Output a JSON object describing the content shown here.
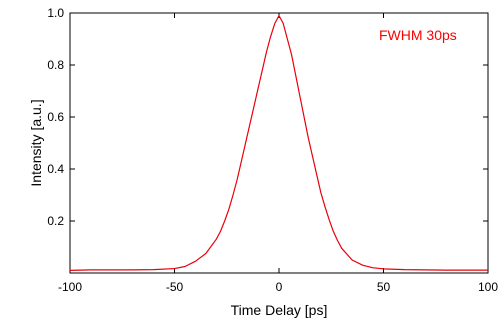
{
  "chart_data": {
    "type": "line",
    "title": "",
    "xlabel": "Time Delay [ps]",
    "ylabel": "Intensity [a.u.]",
    "xlim": [
      -100,
      100
    ],
    "ylim": [
      0,
      1.0
    ],
    "xticks": [
      -100,
      -50,
      0,
      50,
      100
    ],
    "yticks": [
      0.2,
      0.4,
      0.6,
      0.8,
      1.0
    ],
    "xtick_labels": [
      "-100",
      "-50",
      "0",
      "50",
      "100"
    ],
    "ytick_labels": [
      "0.2",
      "0.4",
      "0.6",
      "0.8",
      "1.0"
    ],
    "grid": false,
    "legend": "none",
    "annotation": {
      "text": "FWHM 30ps",
      "color": "#ff0000"
    },
    "series": [
      {
        "color": "#e8000b",
        "x": [
          -100,
          -90,
          -80,
          -70,
          -60,
          -50,
          -45,
          -40,
          -35,
          -30,
          -28,
          -26,
          -24,
          -22,
          -20,
          -18,
          -16,
          -14,
          -12,
          -10,
          -8,
          -6,
          -4,
          -2,
          0,
          2,
          4,
          6,
          8,
          10,
          12,
          14,
          16,
          18,
          20,
          22,
          24,
          26,
          28,
          30,
          35,
          40,
          45,
          50,
          60,
          70,
          80,
          90,
          100
        ],
        "y": [
          0.01,
          0.012,
          0.012,
          0.012,
          0.013,
          0.017,
          0.025,
          0.045,
          0.075,
          0.13,
          0.16,
          0.2,
          0.245,
          0.3,
          0.36,
          0.43,
          0.5,
          0.57,
          0.64,
          0.71,
          0.78,
          0.85,
          0.91,
          0.96,
          0.99,
          0.96,
          0.9,
          0.84,
          0.76,
          0.68,
          0.6,
          0.52,
          0.45,
          0.38,
          0.31,
          0.255,
          0.205,
          0.16,
          0.125,
          0.095,
          0.05,
          0.03,
          0.02,
          0.016,
          0.013,
          0.012,
          0.011,
          0.011,
          0.011
        ]
      }
    ]
  }
}
